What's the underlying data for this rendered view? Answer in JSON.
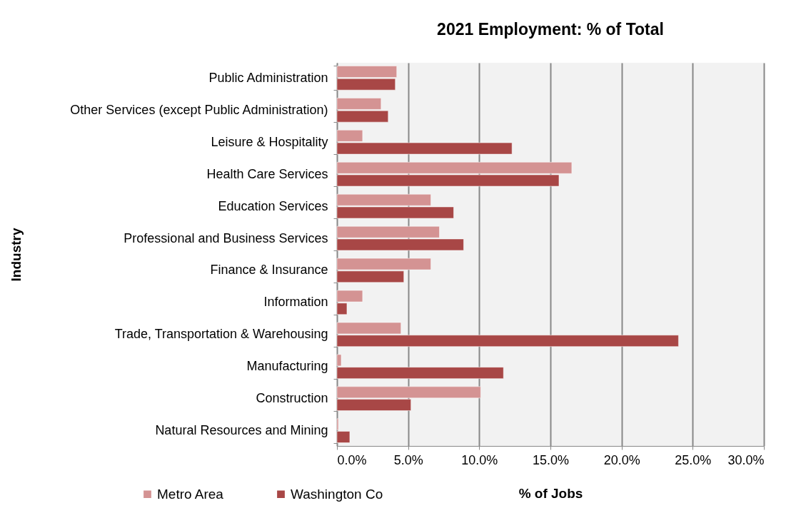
{
  "chart_data": {
    "type": "bar",
    "orientation": "horizontal",
    "title": "2021 Employment:  % of Total",
    "xlabel": "% of Jobs",
    "ylabel": "Industry",
    "categories": [
      "Public Administration",
      "Other Services (except Public Administration)",
      "Leisure & Hospitality",
      "Health Care Services",
      "Education Services",
      "Professional and Business Services",
      "Finance & Insurance",
      "Information",
      "Trade, Transportation & Warehousing",
      "Manufacturing",
      "Construction",
      "Natural Resources and Mining"
    ],
    "series": [
      {
        "name": "Metro Area",
        "color": "#d49393",
        "values": [
          4.2,
          3.1,
          1.8,
          16.5,
          6.6,
          7.2,
          6.6,
          1.8,
          4.5,
          0.3,
          10.1,
          0.1
        ]
      },
      {
        "name": "Washington Co",
        "color": "#a84746",
        "values": [
          4.1,
          3.6,
          12.3,
          15.6,
          8.2,
          8.9,
          4.7,
          0.7,
          24.0,
          11.7,
          5.2,
          0.9
        ]
      }
    ],
    "xlim": [
      0,
      30
    ],
    "xticks": [
      {
        "value": 0,
        "label": "0.0%"
      },
      {
        "value": 5,
        "label": "5.0%"
      },
      {
        "value": 10,
        "label": "10.0%"
      },
      {
        "value": 15,
        "label": "15.0%"
      },
      {
        "value": 20,
        "label": "20.0%"
      },
      {
        "value": 25,
        "label": "25.0%"
      },
      {
        "value": 30,
        "label": "30.0%"
      }
    ],
    "grid": "x",
    "legend": "bottom left"
  }
}
